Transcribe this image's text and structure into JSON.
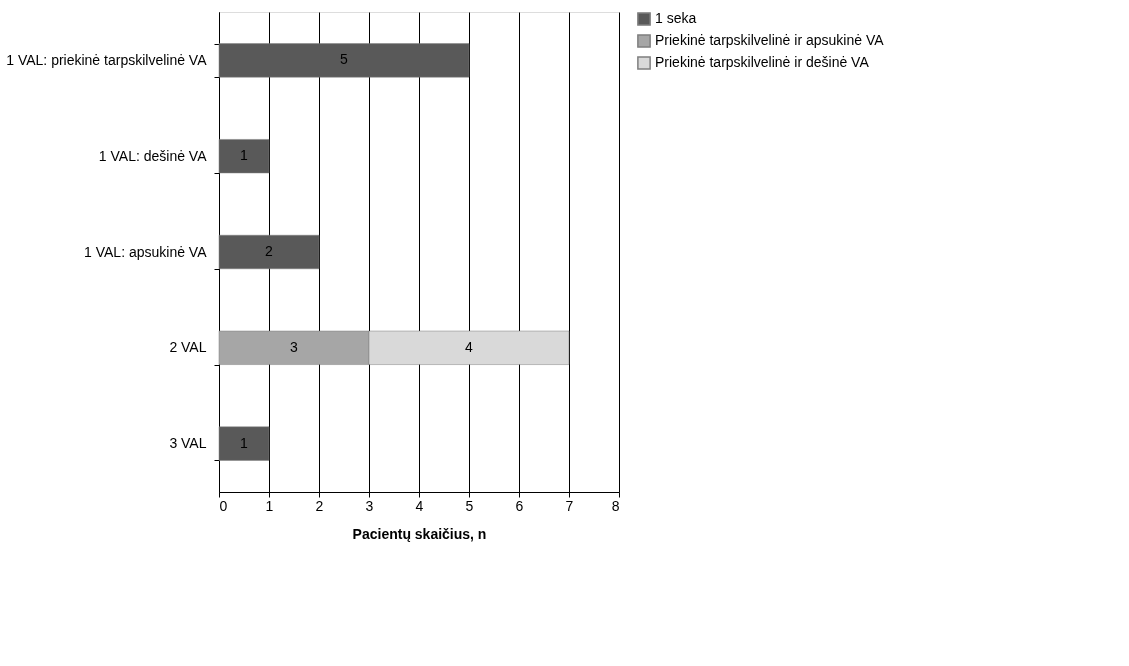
{
  "chart_data": {
    "type": "bar",
    "orientation": "horizontal",
    "stacked": true,
    "data_labels": true,
    "grid": "x",
    "legend": "right",
    "xlabel": "Pacientų skaičius, n",
    "categories": [
      "1 VAL: priekinė tarpskilvelinė VA",
      "1 VAL: dešinė VA",
      "1 VAL: apsukinė VA",
      "2 VAL",
      "3 VAL"
    ],
    "xlim": [
      0,
      8
    ],
    "xticks": [
      0,
      1,
      2,
      3,
      4,
      5,
      6,
      7,
      8
    ],
    "series": [
      {
        "name": "1 seka",
        "color": "#595959",
        "values": [
          5,
          1,
          2,
          null,
          1
        ]
      },
      {
        "name": "Priekinė tarpskilvelinė ir apsukinė VA",
        "color": "#a6a6a6",
        "values": [
          null,
          null,
          null,
          3,
          null
        ]
      },
      {
        "name": "Priekinė tarpskilvelinė ir dešinė VA",
        "color": "#d9d9d9",
        "values": [
          null,
          null,
          null,
          4,
          null
        ]
      }
    ]
  }
}
